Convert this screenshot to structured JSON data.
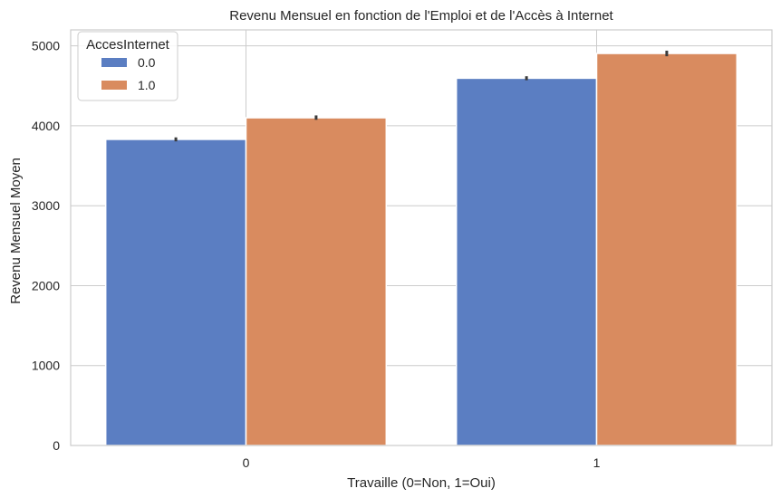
{
  "chart_data": {
    "type": "bar",
    "title": "Revenu Mensuel en fonction de l'Emploi et de l'Accès à Internet",
    "xlabel": "Travaille (0=Non, 1=Oui)",
    "ylabel": "Revenu Mensuel Moyen",
    "categories": [
      "0",
      "1"
    ],
    "ylim": [
      0,
      5200
    ],
    "yticks": [
      "0",
      "1000",
      "2000",
      "3000",
      "4000",
      "5000"
    ],
    "grid": true,
    "legend_title": "AccesInternet",
    "legend_position": "top-left",
    "series": [
      {
        "name": "0.0",
        "color": "#5b7ec2",
        "values": [
          3830,
          4595
        ],
        "error": [
          [
            3805,
            3855
          ],
          [
            4570,
            4620
          ]
        ]
      },
      {
        "name": "1.0",
        "color": "#d98b5f",
        "values": [
          4100,
          4905
        ],
        "error": [
          [
            4075,
            4130
          ],
          [
            4870,
            4940
          ]
        ]
      }
    ]
  }
}
